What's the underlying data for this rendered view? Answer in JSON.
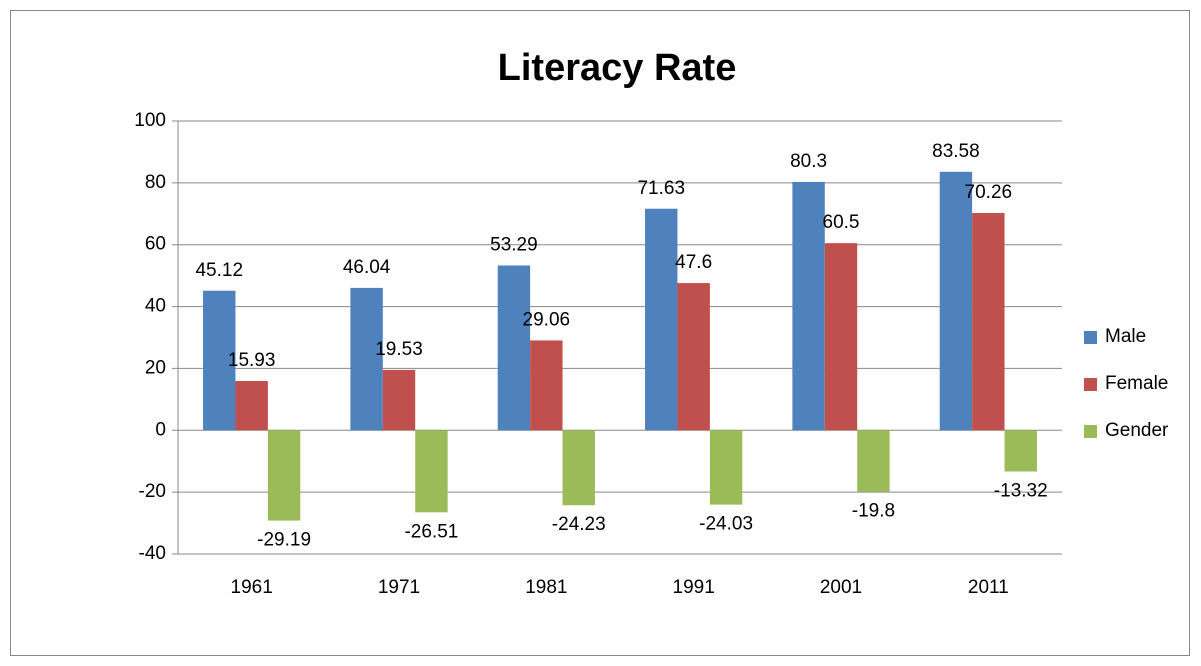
{
  "chart_data": {
    "type": "bar",
    "title": "Literacy Rate",
    "categories": [
      "1961",
      "1971",
      "1981",
      "1991",
      "2001",
      "2011"
    ],
    "series": [
      {
        "name": "Male",
        "color": "#4f81bd",
        "values": [
          45.12,
          46.04,
          53.29,
          71.63,
          80.3,
          83.58
        ]
      },
      {
        "name": "Female",
        "color": "#c0504d",
        "values": [
          15.93,
          19.53,
          29.06,
          47.6,
          60.5,
          70.26
        ]
      },
      {
        "name": "Gender",
        "color": "#9bbb59",
        "values": [
          -29.19,
          -26.51,
          -24.23,
          -24.03,
          -19.8,
          -13.32
        ]
      }
    ],
    "ylim": [
      -40,
      100
    ],
    "yticks": [
      -40,
      -20,
      0,
      20,
      40,
      60,
      80,
      100
    ],
    "grid": true,
    "legend": "right"
  }
}
